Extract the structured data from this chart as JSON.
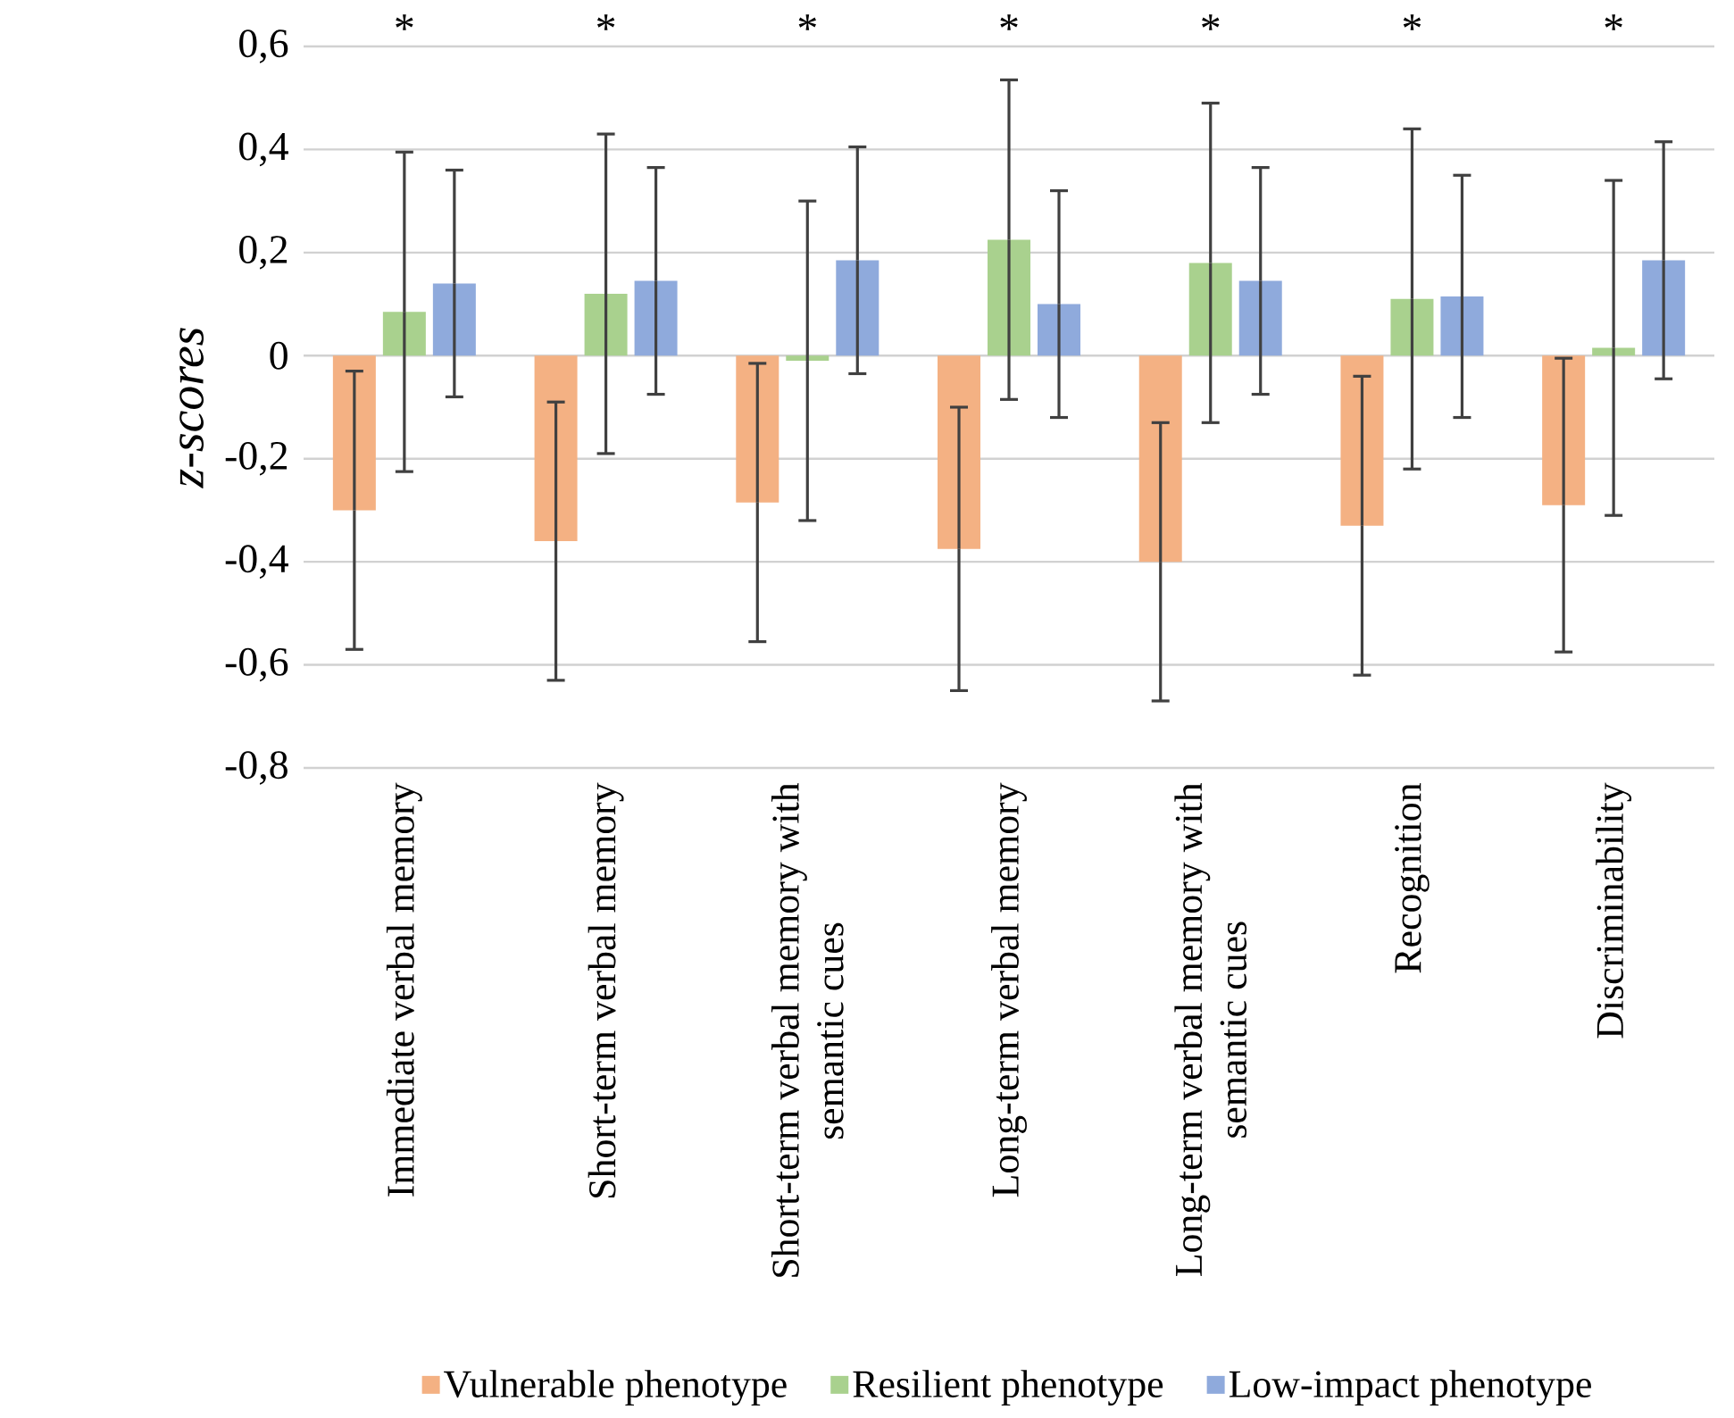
{
  "chart_data": {
    "type": "bar",
    "ylabel": "z-scores",
    "categories": [
      "Immediate verbal memory",
      "Short-term verbal memory",
      "Short-term verbal memory with semantic cues",
      "Long-term verbal memory",
      "Long-term verbal memory with semantic cues",
      "Recognition",
      "Discriminability"
    ],
    "series": [
      {
        "name": "Vulnerable phenotype",
        "color": "#f4b183",
        "values": [
          -0.3,
          -0.36,
          -0.285,
          -0.375,
          -0.4,
          -0.33,
          -0.29
        ],
        "errors": [
          0.27,
          0.27,
          0.27,
          0.275,
          0.27,
          0.29,
          0.285
        ]
      },
      {
        "name": "Resilient phenotype",
        "color": "#a9d18e",
        "values": [
          0.085,
          0.12,
          -0.01,
          0.225,
          0.18,
          0.11,
          0.015
        ],
        "errors": [
          0.31,
          0.31,
          0.31,
          0.31,
          0.31,
          0.33,
          0.325
        ]
      },
      {
        "name": "Low-impact phenotype",
        "color": "#8faadc",
        "values": [
          0.14,
          0.145,
          0.185,
          0.1,
          0.145,
          0.115,
          0.185
        ],
        "errors": [
          0.22,
          0.22,
          0.22,
          0.22,
          0.22,
          0.235,
          0.23
        ]
      }
    ],
    "ylim": [
      -0.8,
      0.6
    ],
    "yticks": [
      {
        "value": -0.8,
        "label": "-0,8"
      },
      {
        "value": -0.6,
        "label": "-0,6"
      },
      {
        "value": -0.4,
        "label": "-0,4"
      },
      {
        "value": -0.2,
        "label": "-0,2"
      },
      0,
      {
        "value": 0.2,
        "label": "0,2"
      },
      {
        "value": 0.4,
        "label": "0,4"
      },
      {
        "value": 0.6,
        "label": "0,6"
      }
    ],
    "grid": "y",
    "legend": "bottom",
    "annotations": [
      "*",
      "*",
      "*",
      "*",
      "*",
      "*",
      "*"
    ]
  }
}
